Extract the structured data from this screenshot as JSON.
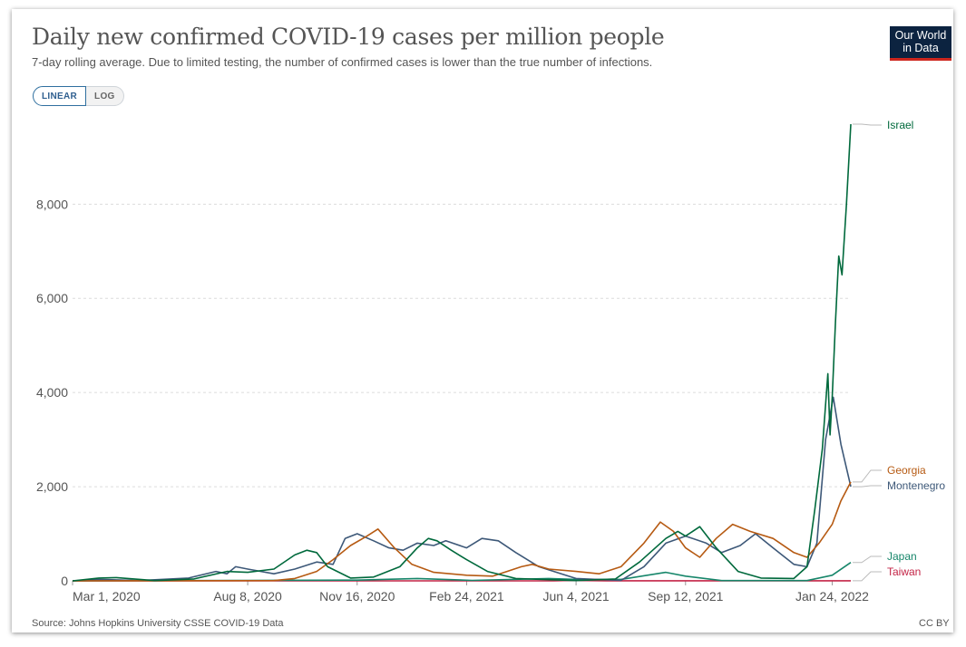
{
  "title": "Daily new confirmed COVID-19 cases per million people",
  "subtitle": "7-day rolling average. Due to limited testing, the number of confirmed cases is lower than the true number of infections.",
  "logo": {
    "line1": "Our World",
    "line2": "in Data"
  },
  "toggle": {
    "linear": "LINEAR",
    "log": "LOG",
    "active": "linear"
  },
  "footer": {
    "source": "Source: Johns Hopkins University CSSE COVID-19 Data",
    "license": "CC BY"
  },
  "colors": {
    "Israel": "#00693c",
    "Georgia": "#b65a12",
    "Montenegro": "#3d5878",
    "Japan": "#16866a",
    "Taiwan": "#c42547"
  },
  "chart_data": {
    "type": "line",
    "title": "Daily new confirmed COVID-19 cases per million people",
    "xlabel": "",
    "ylabel": "",
    "ylim": [
      0,
      9700
    ],
    "x_range": [
      "2020-03-01",
      "2022-02-10"
    ],
    "x_ticks": [
      "Mar 1, 2020",
      "Aug 8, 2020",
      "Nov 16, 2020",
      "Feb 24, 2021",
      "Jun 4, 2021",
      "Sep 12, 2021",
      "Jan 24, 2022"
    ],
    "x_tick_dates": [
      "2020-03-01",
      "2020-08-08",
      "2020-11-16",
      "2021-02-24",
      "2021-06-04",
      "2021-09-12",
      "2022-01-24"
    ],
    "y_ticks": [
      0,
      2000,
      4000,
      6000,
      8000
    ],
    "y_tick_labels": [
      "0",
      "2,000",
      "4,000",
      "6,000",
      "8,000"
    ],
    "grid": "horizontal dashed",
    "legend": "right, labels at line ends",
    "series": [
      {
        "name": "Israel",
        "points": [
          [
            "2020-03-01",
            0
          ],
          [
            "2020-03-25",
            60
          ],
          [
            "2020-04-10",
            70
          ],
          [
            "2020-05-15",
            5
          ],
          [
            "2020-06-20",
            40
          ],
          [
            "2020-07-20",
            200
          ],
          [
            "2020-08-08",
            180
          ],
          [
            "2020-09-01",
            250
          ],
          [
            "2020-09-20",
            550
          ],
          [
            "2020-10-01",
            650
          ],
          [
            "2020-10-10",
            600
          ],
          [
            "2020-10-20",
            300
          ],
          [
            "2020-11-10",
            60
          ],
          [
            "2020-12-01",
            80
          ],
          [
            "2020-12-25",
            300
          ],
          [
            "2021-01-10",
            700
          ],
          [
            "2021-01-20",
            900
          ],
          [
            "2021-01-28",
            850
          ],
          [
            "2021-02-10",
            650
          ],
          [
            "2021-02-24",
            450
          ],
          [
            "2021-03-15",
            200
          ],
          [
            "2021-04-10",
            50
          ],
          [
            "2021-06-04",
            5
          ],
          [
            "2021-07-10",
            40
          ],
          [
            "2021-08-01",
            400
          ],
          [
            "2021-08-25",
            900
          ],
          [
            "2021-09-05",
            1050
          ],
          [
            "2021-09-12",
            950
          ],
          [
            "2021-09-25",
            1150
          ],
          [
            "2021-10-10",
            700
          ],
          [
            "2021-10-30",
            200
          ],
          [
            "2021-11-20",
            60
          ],
          [
            "2021-12-20",
            50
          ],
          [
            "2022-01-01",
            300
          ],
          [
            "2022-01-08",
            1500
          ],
          [
            "2022-01-15",
            2800
          ],
          [
            "2022-01-20",
            4400
          ],
          [
            "2022-01-22",
            3100
          ],
          [
            "2022-01-24",
            3900
          ],
          [
            "2022-01-27",
            5500
          ],
          [
            "2022-01-30",
            6900
          ],
          [
            "2022-02-02",
            6500
          ],
          [
            "2022-02-06",
            8000
          ],
          [
            "2022-02-10",
            9700
          ]
        ]
      },
      {
        "name": "Georgia",
        "points": [
          [
            "2020-03-01",
            0
          ],
          [
            "2020-09-01",
            5
          ],
          [
            "2020-09-20",
            50
          ],
          [
            "2020-10-10",
            200
          ],
          [
            "2020-10-25",
            450
          ],
          [
            "2020-11-10",
            750
          ],
          [
            "2020-11-25",
            950
          ],
          [
            "2020-12-05",
            1100
          ],
          [
            "2020-12-20",
            700
          ],
          [
            "2021-01-05",
            350
          ],
          [
            "2021-01-25",
            180
          ],
          [
            "2021-02-24",
            120
          ],
          [
            "2021-03-20",
            100
          ],
          [
            "2021-04-15",
            300
          ],
          [
            "2021-04-25",
            350
          ],
          [
            "2021-05-10",
            250
          ],
          [
            "2021-06-04",
            200
          ],
          [
            "2021-06-25",
            150
          ],
          [
            "2021-07-15",
            300
          ],
          [
            "2021-08-05",
            800
          ],
          [
            "2021-08-20",
            1250
          ],
          [
            "2021-09-01",
            1050
          ],
          [
            "2021-09-12",
            700
          ],
          [
            "2021-09-25",
            500
          ],
          [
            "2021-10-10",
            900
          ],
          [
            "2021-10-25",
            1200
          ],
          [
            "2021-11-10",
            1050
          ],
          [
            "2021-12-01",
            900
          ],
          [
            "2021-12-20",
            600
          ],
          [
            "2022-01-01",
            500
          ],
          [
            "2022-01-12",
            800
          ],
          [
            "2022-01-24",
            1200
          ],
          [
            "2022-02-01",
            1700
          ],
          [
            "2022-02-10",
            2100
          ]
        ]
      },
      {
        "name": "Montenegro",
        "points": [
          [
            "2020-03-01",
            0
          ],
          [
            "2020-03-25",
            30
          ],
          [
            "2020-05-01",
            5
          ],
          [
            "2020-06-15",
            60
          ],
          [
            "2020-07-10",
            200
          ],
          [
            "2020-07-20",
            150
          ],
          [
            "2020-07-28",
            300
          ],
          [
            "2020-08-08",
            250
          ],
          [
            "2020-09-01",
            150
          ],
          [
            "2020-09-20",
            250
          ],
          [
            "2020-10-10",
            400
          ],
          [
            "2020-10-25",
            350
          ],
          [
            "2020-11-05",
            900
          ],
          [
            "2020-11-16",
            1000
          ],
          [
            "2020-12-01",
            850
          ],
          [
            "2020-12-15",
            700
          ],
          [
            "2020-12-28",
            650
          ],
          [
            "2021-01-10",
            800
          ],
          [
            "2021-01-25",
            750
          ],
          [
            "2021-02-05",
            850
          ],
          [
            "2021-02-24",
            700
          ],
          [
            "2021-03-10",
            900
          ],
          [
            "2021-03-25",
            850
          ],
          [
            "2021-04-10",
            600
          ],
          [
            "2021-05-01",
            300
          ],
          [
            "2021-06-04",
            50
          ],
          [
            "2021-07-15",
            10
          ],
          [
            "2021-08-05",
            300
          ],
          [
            "2021-08-25",
            800
          ],
          [
            "2021-09-12",
            950
          ],
          [
            "2021-10-01",
            800
          ],
          [
            "2021-10-15",
            600
          ],
          [
            "2021-11-01",
            750
          ],
          [
            "2021-11-15",
            1000
          ],
          [
            "2021-12-01",
            700
          ],
          [
            "2021-12-20",
            350
          ],
          [
            "2022-01-01",
            300
          ],
          [
            "2022-01-10",
            800
          ],
          [
            "2022-01-18",
            3000
          ],
          [
            "2022-01-25",
            3900
          ],
          [
            "2022-02-01",
            2900
          ],
          [
            "2022-02-10",
            2000
          ]
        ]
      },
      {
        "name": "Japan",
        "points": [
          [
            "2020-03-01",
            0
          ],
          [
            "2020-08-08",
            10
          ],
          [
            "2020-11-16",
            15
          ],
          [
            "2021-01-10",
            50
          ],
          [
            "2021-03-01",
            10
          ],
          [
            "2021-05-10",
            50
          ],
          [
            "2021-06-04",
            30
          ],
          [
            "2021-07-15",
            30
          ],
          [
            "2021-08-25",
            180
          ],
          [
            "2021-09-12",
            100
          ],
          [
            "2021-10-15",
            5
          ],
          [
            "2022-01-01",
            5
          ],
          [
            "2022-01-24",
            120
          ],
          [
            "2022-02-10",
            390
          ]
        ]
      },
      {
        "name": "Taiwan",
        "points": [
          [
            "2020-03-01",
            0
          ],
          [
            "2021-05-15",
            0
          ],
          [
            "2021-06-01",
            10
          ],
          [
            "2021-07-01",
            2
          ],
          [
            "2022-02-10",
            2
          ]
        ]
      }
    ]
  }
}
